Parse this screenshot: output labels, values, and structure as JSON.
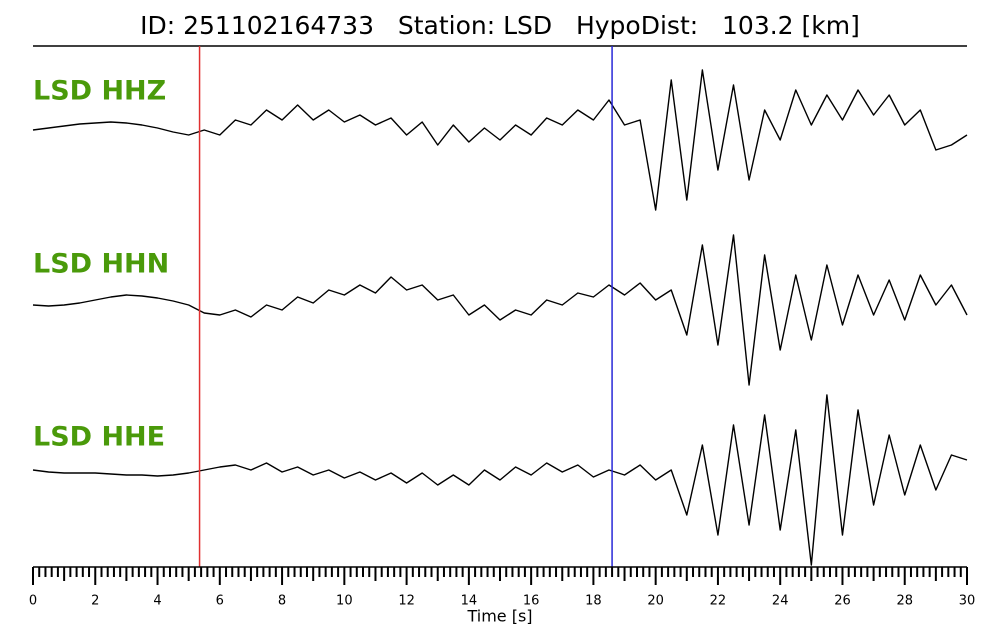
{
  "chart_data": {
    "type": "line",
    "title": "ID: 251102164733   Station: LSD   HypoDist:   103.2 [km]",
    "xlabel": "Time [s]",
    "xlim": [
      0,
      30
    ],
    "xticks": [
      0,
      2,
      4,
      6,
      8,
      10,
      12,
      14,
      16,
      18,
      20,
      22,
      24,
      26,
      28,
      30
    ],
    "xminor_per_major": 10,
    "label_color": "#4a9a0a",
    "markers": [
      {
        "x": 5.35,
        "color": "#e03030"
      },
      {
        "x": 18.6,
        "color": "#2828d8"
      }
    ],
    "x": [
      0,
      0.5,
      1,
      1.5,
      2,
      2.5,
      3,
      3.5,
      4,
      4.5,
      5,
      5.5,
      6,
      6.5,
      7,
      7.5,
      8,
      8.5,
      9,
      9.5,
      10,
      10.5,
      11,
      11.5,
      12,
      12.5,
      13,
      13.5,
      14,
      14.5,
      15,
      15.5,
      16,
      16.5,
      17,
      17.5,
      18,
      18.5,
      19,
      19.5,
      20,
      20.5,
      21,
      21.5,
      22,
      22.5,
      23,
      23.5,
      24,
      24.5,
      25,
      25.5,
      26,
      26.5,
      27,
      27.5,
      28,
      28.5,
      29,
      29.5,
      30
    ],
    "series": [
      {
        "name": "LSD HHZ",
        "color": "#000000",
        "values": [
          0,
          0.02,
          0.04,
          0.06,
          0.07,
          0.08,
          0.07,
          0.05,
          0.02,
          -0.02,
          -0.05,
          0.0,
          -0.05,
          0.1,
          0.05,
          0.2,
          0.1,
          0.25,
          0.1,
          0.2,
          0.08,
          0.15,
          0.05,
          0.12,
          -0.05,
          0.08,
          -0.15,
          0.05,
          -0.12,
          0.02,
          -0.1,
          0.05,
          -0.05,
          0.12,
          0.05,
          0.2,
          0.1,
          0.3,
          0.05,
          0.1,
          -0.8,
          0.5,
          -0.7,
          0.6,
          -0.4,
          0.45,
          -0.5,
          0.2,
          -0.1,
          0.4,
          0.05,
          0.35,
          0.1,
          0.4,
          0.15,
          0.35,
          0.05,
          0.2,
          -0.2,
          -0.15,
          -0.05
        ]
      },
      {
        "name": "LSD HHN",
        "color": "#000000",
        "values": [
          0,
          -0.01,
          0,
          0.02,
          0.05,
          0.08,
          0.1,
          0.09,
          0.07,
          0.04,
          0.0,
          -0.08,
          -0.1,
          -0.05,
          -0.12,
          0.0,
          -0.05,
          0.08,
          0.02,
          0.15,
          0.1,
          0.2,
          0.12,
          0.28,
          0.15,
          0.2,
          0.05,
          0.1,
          -0.1,
          0.0,
          -0.15,
          -0.05,
          -0.1,
          0.05,
          0.0,
          0.12,
          0.08,
          0.2,
          0.1,
          0.22,
          0.05,
          0.15,
          -0.3,
          0.6,
          -0.4,
          0.7,
          -0.8,
          0.5,
          -0.45,
          0.3,
          -0.35,
          0.4,
          -0.2,
          0.3,
          -0.1,
          0.25,
          -0.15,
          0.3,
          0.0,
          0.2,
          -0.1
        ]
      },
      {
        "name": "LSD HHE",
        "color": "#000000",
        "values": [
          0.05,
          0.03,
          0.02,
          0.02,
          0.02,
          0.01,
          0.0,
          0.0,
          -0.01,
          0.0,
          0.02,
          0.05,
          0.08,
          0.1,
          0.05,
          0.12,
          0.03,
          0.08,
          0.0,
          0.05,
          -0.03,
          0.03,
          -0.05,
          0.02,
          -0.08,
          0.02,
          -0.1,
          0.0,
          -0.1,
          0.05,
          -0.05,
          0.08,
          0.0,
          0.12,
          0.03,
          0.1,
          -0.02,
          0.05,
          0.0,
          0.1,
          -0.05,
          0.05,
          -0.4,
          0.3,
          -0.6,
          0.5,
          -0.5,
          0.6,
          -0.55,
          0.45,
          -0.9,
          0.8,
          -0.6,
          0.65,
          -0.3,
          0.4,
          -0.2,
          0.3,
          -0.15,
          0.2,
          0.15
        ]
      }
    ]
  }
}
